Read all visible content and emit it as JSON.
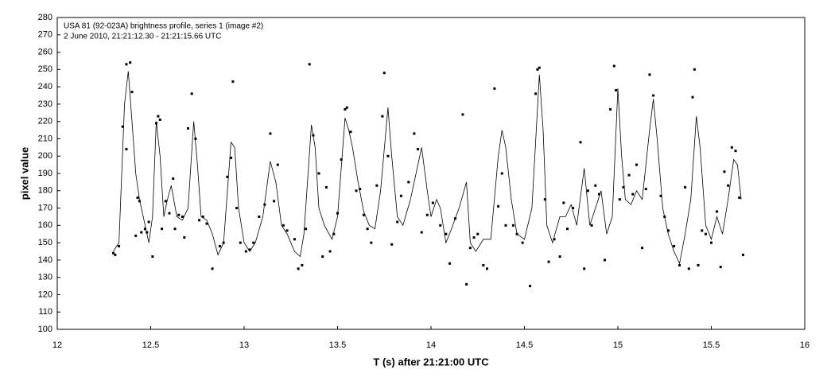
{
  "chart_data": {
    "type": "scatter",
    "title": "USA 81 (92-023A) brightness profile, series 1 (image #2)",
    "subtitle": "2 June 2010, 21:21:12.30 - 21:21:15.66 UTC",
    "x_label": "T (s) after 21:21:00 UTC",
    "y_label": "pixel value",
    "xlim": [
      12,
      16
    ],
    "xticks": [
      12,
      12.5,
      13,
      13.5,
      14,
      14.5,
      15,
      15.5,
      16
    ],
    "ylim": [
      100,
      280
    ],
    "yticks": [
      100,
      110,
      120,
      130,
      140,
      150,
      160,
      170,
      180,
      190,
      200,
      210,
      220,
      230,
      240,
      250,
      260,
      270,
      280
    ],
    "series": [
      {
        "type": "scatter",
        "color": "#000000",
        "x": [
          12.3,
          12.31,
          12.33,
          12.35,
          12.37,
          12.37,
          12.39,
          12.4,
          12.42,
          12.43,
          12.44,
          12.45,
          12.47,
          12.48,
          12.49,
          12.51,
          12.53,
          12.54,
          12.55,
          12.56,
          12.58,
          12.6,
          12.62,
          12.63,
          12.65,
          12.67,
          12.68,
          12.7,
          12.72,
          12.74,
          12.76,
          12.78,
          12.8,
          12.83,
          12.87,
          12.89,
          12.91,
          12.93,
          12.94,
          12.96,
          12.98,
          13.01,
          13.03,
          13.05,
          13.08,
          13.11,
          13.14,
          13.16,
          13.18,
          13.21,
          13.23,
          13.27,
          13.29,
          13.31,
          13.33,
          13.35,
          13.37,
          13.4,
          13.42,
          13.44,
          13.46,
          13.48,
          13.5,
          13.52,
          13.54,
          13.55,
          13.57,
          13.6,
          13.62,
          13.64,
          13.66,
          13.68,
          13.71,
          13.74,
          13.75,
          13.77,
          13.79,
          13.82,
          13.84,
          13.88,
          13.91,
          13.93,
          13.95,
          13.98,
          14.01,
          14.05,
          14.08,
          14.1,
          14.13,
          14.17,
          14.19,
          14.21,
          14.23,
          14.25,
          14.28,
          14.3,
          14.34,
          14.36,
          14.38,
          14.4,
          14.44,
          14.46,
          14.49,
          14.53,
          14.56,
          14.57,
          14.58,
          14.61,
          14.63,
          14.66,
          14.69,
          14.71,
          14.73,
          14.76,
          14.8,
          14.82,
          14.84,
          14.86,
          14.88,
          14.9,
          14.93,
          14.96,
          14.98,
          14.99,
          15.01,
          15.03,
          15.06,
          15.08,
          15.1,
          15.13,
          15.15,
          15.17,
          15.19,
          15.23,
          15.25,
          15.27,
          15.3,
          15.33,
          15.36,
          15.38,
          15.4,
          15.41,
          15.43,
          15.45,
          15.47,
          15.5,
          15.53,
          15.55,
          15.57,
          15.59,
          15.61,
          15.63,
          15.65,
          15.67
        ],
        "values": [
          144,
          143,
          148,
          217,
          204,
          253,
          254,
          237,
          154,
          176,
          174,
          156,
          158,
          156,
          162,
          142,
          219,
          223,
          221,
          158,
          174,
          167,
          187,
          158,
          166,
          165,
          153,
          216,
          236,
          210,
          163,
          165,
          161,
          135,
          148,
          150,
          188,
          199,
          243,
          170,
          150,
          145,
          146,
          150,
          165,
          172,
          213,
          174,
          195,
          160,
          157,
          152,
          135,
          137,
          158,
          253,
          212,
          190,
          142,
          182,
          145,
          155,
          167,
          198,
          227,
          228,
          214,
          180,
          181,
          166,
          158,
          150,
          183,
          223,
          248,
          200,
          149,
          162,
          177,
          185,
          213,
          204,
          156,
          166,
          173,
          160,
          155,
          138,
          164,
          224,
          126,
          147,
          153,
          155,
          137,
          135,
          239,
          171,
          190,
          160,
          160,
          155,
          150,
          125,
          236,
          250,
          251,
          175,
          139,
          152,
          142,
          173,
          158,
          170,
          208,
          135,
          180,
          160,
          183,
          178,
          140,
          227,
          252,
          238,
          175,
          182,
          189,
          178,
          195,
          147,
          181,
          247,
          235,
          177,
          165,
          157,
          148,
          137,
          182,
          135,
          234,
          250,
          137,
          157,
          155,
          150,
          168,
          136,
          191,
          183,
          205,
          203,
          176,
          143
        ]
      },
      {
        "type": "line",
        "color": "#000000",
        "x": [
          12.3,
          12.33,
          12.36,
          12.38,
          12.4,
          12.42,
          12.44,
          12.47,
          12.49,
          12.51,
          12.53,
          12.55,
          12.57,
          12.59,
          12.61,
          12.64,
          12.67,
          12.7,
          12.73,
          12.75,
          12.77,
          12.8,
          12.83,
          12.86,
          12.89,
          12.93,
          12.95,
          12.97,
          13.0,
          13.03,
          13.06,
          13.1,
          13.14,
          13.17,
          13.2,
          13.23,
          13.27,
          13.3,
          13.32,
          13.36,
          13.38,
          13.4,
          13.43,
          13.47,
          13.5,
          13.54,
          13.56,
          13.58,
          13.61,
          13.64,
          13.67,
          13.7,
          13.73,
          13.77,
          13.79,
          13.82,
          13.85,
          13.89,
          13.92,
          13.95,
          13.98,
          14.0,
          14.03,
          14.05,
          14.08,
          14.11,
          14.15,
          14.19,
          14.21,
          14.24,
          14.28,
          14.32,
          14.36,
          14.38,
          14.4,
          14.43,
          14.46,
          14.5,
          14.54,
          14.58,
          14.6,
          14.62,
          14.65,
          14.69,
          14.72,
          14.75,
          14.78,
          14.82,
          14.85,
          14.88,
          14.91,
          14.94,
          14.97,
          15.0,
          15.02,
          15.04,
          15.07,
          15.1,
          15.13,
          15.17,
          15.19,
          15.21,
          15.24,
          15.27,
          15.3,
          15.33,
          15.36,
          15.39,
          15.42,
          15.44,
          15.47,
          15.5,
          15.53,
          15.56,
          15.59,
          15.62,
          15.64,
          15.66
        ],
        "values": [
          145,
          150,
          230,
          249,
          220,
          190,
          175,
          160,
          150,
          165,
          220,
          200,
          165,
          175,
          183,
          165,
          163,
          170,
          220,
          195,
          165,
          163,
          155,
          143,
          150,
          208,
          205,
          170,
          150,
          145,
          150,
          165,
          197,
          185,
          160,
          155,
          145,
          142,
          155,
          218,
          205,
          170,
          160,
          152,
          165,
          222,
          215,
          205,
          185,
          168,
          160,
          158,
          180,
          228,
          200,
          165,
          160,
          175,
          190,
          205,
          180,
          165,
          175,
          170,
          150,
          158,
          170,
          185,
          150,
          145,
          152,
          152,
          200,
          215,
          205,
          175,
          155,
          152,
          170,
          247,
          215,
          160,
          150,
          165,
          165,
          172,
          160,
          193,
          160,
          170,
          180,
          155,
          165,
          239,
          200,
          175,
          172,
          180,
          175,
          215,
          233,
          210,
          170,
          155,
          145,
          138,
          155,
          175,
          223,
          205,
          160,
          152,
          165,
          155,
          175,
          198,
          195,
          175
        ]
      }
    ]
  }
}
